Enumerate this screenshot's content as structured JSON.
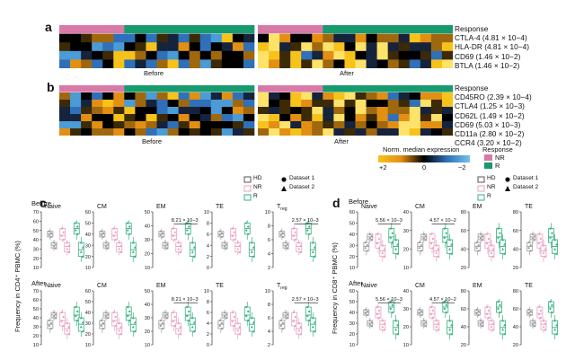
{
  "panels": {
    "a": "a",
    "b": "b",
    "c": "c",
    "d": "d"
  },
  "heatmap_a": {
    "rows": [
      "Response",
      "CTLA-4 (4.81 × 10−4)",
      "HLA-DR (4.81 × 10−4)",
      "CD69 (1.46 × 10−2)",
      "BTLA (1.46 × 10−2)"
    ],
    "before": "Before",
    "after": "After"
  },
  "heatmap_b": {
    "rows": [
      "Response",
      "CD45RO (2.39 × 10−4)",
      "CTLA4 (1.25 × 10−3)",
      "CD62L (1.49 × 10−2)",
      "CD69 (5.03 × 10−3)",
      "CD11a (2.80 × 10−2)",
      "CCR4 (3.20 × 10−2)"
    ],
    "before": "Before",
    "after": "After"
  },
  "colorbar": {
    "title": "Norm. median expression",
    "ticks": [
      "+2",
      "0",
      "−2"
    ]
  },
  "response_legend": {
    "title": "Response",
    "items": [
      {
        "label": "NR",
        "color": "#d87aa7"
      },
      {
        "label": "R",
        "color": "#179a6e"
      }
    ]
  },
  "colors": {
    "HD": "#9a9a9a",
    "NR": "#e8a0c0",
    "R": "#33b07e",
    "orange": "#f7c21a",
    "blue": "#4b9bd6"
  },
  "legend_c": {
    "groups": [
      "HD",
      "NR",
      "R"
    ],
    "datasets": [
      "Dataset 1",
      "Dataset 2"
    ]
  },
  "legend_d": {
    "groups": [
      "HD",
      "NR",
      "R"
    ],
    "datasets": [
      "Dataset 1",
      "Dataset 2"
    ]
  },
  "panel_c": {
    "ylabel": "Frequency in CD4⁺ PBMC (%)",
    "before": "Before",
    "after": "After",
    "subplots": [
      {
        "row": "before",
        "title": "Naive",
        "ticks": [
          "70",
          "60",
          "50",
          "40",
          "30",
          "20",
          "10"
        ],
        "pval": ""
      },
      {
        "row": "before",
        "title": "CM",
        "ticks": [
          "60",
          "50",
          "40",
          "30",
          "20",
          "10"
        ],
        "pval": ""
      },
      {
        "row": "before",
        "title": "EM",
        "ticks": [
          "50",
          "40",
          "30",
          "20",
          "10"
        ],
        "pval": "8.21 × 10−3"
      },
      {
        "row": "before",
        "title": "TE",
        "ticks": [
          "10",
          "8",
          "6",
          "4",
          "2",
          "0"
        ],
        "pval": ""
      },
      {
        "row": "before",
        "title": "Treg",
        "ticks": [
          "10",
          "8",
          "6",
          "4",
          "2"
        ],
        "pval": "2.57 × 10−3"
      },
      {
        "row": "after",
        "title": "Naive",
        "ticks": [
          "70",
          "60",
          "50",
          "40",
          "30",
          "20",
          "10"
        ],
        "pval": ""
      },
      {
        "row": "after",
        "title": "CM",
        "ticks": [
          "60",
          "50",
          "40",
          "30",
          "20",
          "10"
        ],
        "pval": ""
      },
      {
        "row": "after",
        "title": "EM",
        "ticks": [
          "50",
          "40",
          "30",
          "20",
          "10"
        ],
        "pval": "8.21 × 10−3"
      },
      {
        "row": "after",
        "title": "TE",
        "ticks": [
          "10",
          "8",
          "6",
          "4",
          "2",
          "0"
        ],
        "pval": ""
      },
      {
        "row": "after",
        "title": "Treg",
        "ticks": [
          "10",
          "8",
          "6",
          "4",
          "2"
        ],
        "pval": "2.57 × 10−3"
      }
    ]
  },
  "panel_d": {
    "ylabel": "Frequency in CD8⁺ PBMC (%)",
    "before": "Before",
    "after": "After",
    "subplots": [
      {
        "row": "before",
        "title": "Naive",
        "ticks": [
          "60",
          "50",
          "40",
          "30",
          "20",
          "10"
        ],
        "pval": "5.56 × 10−3"
      },
      {
        "row": "before",
        "title": "CM",
        "ticks": [
          "40",
          "30",
          "20",
          "10"
        ],
        "pval": "4.57 × 10−2"
      },
      {
        "row": "before",
        "title": "EM",
        "ticks": [
          "80",
          "60",
          "40",
          "20"
        ],
        "pval": ""
      },
      {
        "row": "before",
        "title": "TE",
        "ticks": [
          "80",
          "60",
          "40",
          "20"
        ],
        "pval": ""
      },
      {
        "row": "after",
        "title": "Naive",
        "ticks": [
          "60",
          "50",
          "40",
          "30",
          "20",
          "10"
        ],
        "pval": "5.56 × 10−3"
      },
      {
        "row": "after",
        "title": "CM",
        "ticks": [
          "40",
          "30",
          "20",
          "10"
        ],
        "pval": "4.57 × 10−2"
      },
      {
        "row": "after",
        "title": "EM",
        "ticks": [
          "80",
          "60",
          "40",
          "20"
        ],
        "pval": ""
      },
      {
        "row": "after",
        "title": "TE",
        "ticks": [
          "80",
          "60",
          "40",
          "20"
        ],
        "pval": ""
      }
    ]
  }
}
